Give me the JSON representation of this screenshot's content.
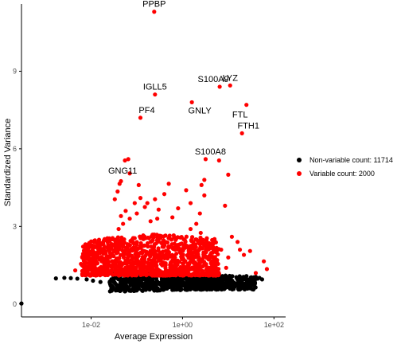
{
  "chart_data": {
    "type": "scatter",
    "xlabel": "Average Expression",
    "ylabel": "Standardized Variance",
    "x_scale": "log10",
    "xlim": [
      0.0003,
      180
    ],
    "ylim": [
      -0.5,
      11.6
    ],
    "x_ticks": [
      {
        "value": 0.01,
        "label": "1e-02"
      },
      {
        "value": 1,
        "label": "1e+00"
      },
      {
        "value": 100,
        "label": "1e+02"
      }
    ],
    "y_ticks": [
      {
        "value": 0,
        "label": "0"
      },
      {
        "value": 3,
        "label": "3"
      },
      {
        "value": 6,
        "label": "6"
      },
      {
        "value": 9,
        "label": "9"
      }
    ],
    "grid": false,
    "legend_position": "right",
    "series": [
      {
        "name": "Non-variable count: 11714",
        "color": "#000000",
        "cloud": {
          "x_min_log": -1.6,
          "x_max_log": 1.6,
          "y_low": 0.45,
          "y_high": 1.2,
          "count": 900
        },
        "points": [
          [
            0.0003,
            0.02
          ],
          [
            0.005,
            0.98
          ],
          [
            0.0017,
            0.99
          ],
          [
            0.0026,
            1.01
          ],
          [
            0.0036,
            1.0
          ],
          [
            0.008,
            0.95
          ],
          [
            0.011,
            0.9
          ],
          [
            0.016,
            0.85
          ],
          [
            44,
            0.98
          ],
          [
            48,
            1.01
          ],
          [
            55,
            0.95
          ],
          [
            40,
            1.05
          ],
          [
            30,
            0.9
          ],
          [
            25,
            1.08
          ],
          [
            35,
            0.8
          ]
        ]
      },
      {
        "name": "Variable count: 2000",
        "color": "#ff0000",
        "cloud": {
          "x_min_log": -2.2,
          "x_max_log": 0.8,
          "y_low": 1.1,
          "y_high": 2.7,
          "count": 1100
        },
        "points": [
          [
            0.0045,
            1.3
          ],
          [
            0.006,
            1.55
          ],
          [
            0.0085,
            1.45
          ],
          [
            0.012,
            1.7
          ],
          [
            0.013,
            1.9
          ],
          [
            0.017,
            1.65
          ],
          [
            0.02,
            2.2
          ],
          [
            0.026,
            2.1
          ],
          [
            0.03,
            2.5
          ],
          [
            0.035,
            2.35
          ],
          [
            0.04,
            2.9
          ],
          [
            0.045,
            3.4
          ],
          [
            0.05,
            3.1
          ],
          [
            0.057,
            3.6
          ],
          [
            0.07,
            3.3
          ],
          [
            0.09,
            3.9
          ],
          [
            0.1,
            3.5
          ],
          [
            0.12,
            4.1
          ],
          [
            0.15,
            3.75
          ],
          [
            0.2,
            3.2
          ],
          [
            0.033,
            4.05
          ],
          [
            0.038,
            4.35
          ],
          [
            0.042,
            4.65
          ],
          [
            0.045,
            4.75
          ],
          [
            0.17,
            3.9
          ],
          [
            0.28,
            3.3
          ],
          [
            0.3,
            3.65
          ],
          [
            0.4,
            4.25
          ],
          [
            0.5,
            4.65
          ],
          [
            0.8,
            3.7
          ],
          [
            1.2,
            4.4
          ],
          [
            1.5,
            3.9
          ],
          [
            2.0,
            3.1
          ],
          [
            2.4,
            3.5
          ],
          [
            2.6,
            4.6
          ],
          [
            3.0,
            4.8
          ],
          [
            3.0,
            4.2
          ],
          [
            8.5,
            3.8
          ],
          [
            12.0,
            2.6
          ],
          [
            16.0,
            2.4
          ],
          [
            18.0,
            2.1
          ],
          [
            22.0,
            1.9
          ],
          [
            30.0,
            2.05
          ],
          [
            40.0,
            1.2
          ],
          [
            60.0,
            1.65
          ],
          [
            70.0,
            1.35
          ],
          [
            2.5,
            2.75
          ],
          [
            5.0,
            2.45
          ],
          [
            7.0,
            2.1
          ],
          [
            10.0,
            1.8
          ],
          [
            4.0,
            2.3
          ],
          [
            6.0,
            1.55
          ],
          [
            9.0,
            1.4
          ],
          [
            1.5,
            2.9
          ],
          [
            0.6,
            3.35
          ],
          [
            0.25,
            4.05
          ],
          [
            0.11,
            4.6
          ],
          [
            0.07,
            5.05
          ],
          [
            0.055,
            5.55
          ],
          [
            0.065,
            5.6
          ],
          [
            10.0,
            5.0
          ],
          [
            0.12,
            7.2
          ],
          [
            0.25,
            8.1
          ],
          [
            0.24,
            11.3
          ],
          [
            1.6,
            7.8
          ],
          [
            3.2,
            5.6
          ],
          [
            6.3,
            5.55
          ],
          [
            6.5,
            8.4
          ],
          [
            11.0,
            8.45
          ],
          [
            20.0,
            6.6
          ],
          [
            25.0,
            7.7
          ]
        ]
      }
    ],
    "annotations": [
      {
        "text": "PPBP",
        "x": 0.24,
        "y": 11.3
      },
      {
        "text": "LYZ",
        "x": 11.0,
        "y": 8.45
      },
      {
        "text": "S100A9",
        "x": 6.5,
        "y": 8.4
      },
      {
        "text": "IGLL5",
        "x": 0.25,
        "y": 8.1
      },
      {
        "text": "GNLY",
        "x": 1.6,
        "y": 7.8
      },
      {
        "text": "FTL",
        "x": 25.0,
        "y": 7.7
      },
      {
        "text": "PF4",
        "x": 0.12,
        "y": 7.2
      },
      {
        "text": "FTH1",
        "x": 20.0,
        "y": 6.6
      },
      {
        "text": "S100A8",
        "x": 3.2,
        "y": 5.6
      },
      {
        "text": "GNG11",
        "x": 0.065,
        "y": 5.6
      }
    ]
  }
}
